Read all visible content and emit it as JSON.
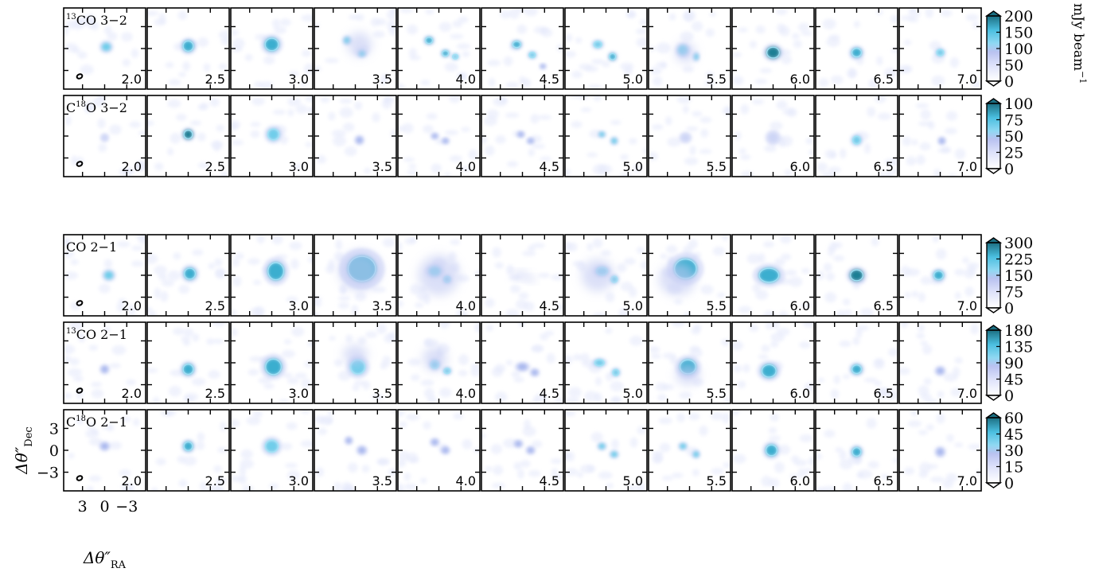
{
  "chart_data": {
    "type": "heatmap",
    "description_kind": "channel-map",
    "velocities": [
      "2.0",
      "2.5",
      "3.0",
      "3.5",
      "4.0",
      "4.5",
      "5.0",
      "5.5",
      "6.0",
      "6.5",
      "7.0"
    ],
    "colorbar_unit": "mJy beam",
    "colorbar_unit_sup": "−1",
    "x_axis": {
      "title": "Δθ″",
      "title_sub": "RA",
      "ticks": [
        "3",
        "0",
        "−3"
      ]
    },
    "y_axis": {
      "title": "Δθ″",
      "title_sub": "Dec",
      "ticks": [
        "3",
        "0",
        "−3"
      ]
    },
    "colors": {
      "low": "#ffffff",
      "mid": "#c9d0f5",
      "cyan": "#4fc4e8",
      "high": "#1c6f82"
    },
    "rows": [
      {
        "label_sup": "13",
        "label": "CO 3−2",
        "colorbar": {
          "min": 0,
          "max": 200,
          "ticks": [
            "200",
            "150",
            "100",
            "50",
            "0"
          ]
        },
        "emission": [
          [
            [
              0.52,
              0.48,
              0.11,
              0.1,
              0.5
            ]
          ],
          [
            [
              0.5,
              0.47,
              0.13,
              0.13,
              0.7
            ]
          ],
          [
            [
              0.5,
              0.45,
              0.17,
              0.16,
              0.8
            ]
          ],
          [
            [
              0.4,
              0.4,
              0.08,
              0.08,
              0.45
            ],
            [
              0.58,
              0.56,
              0.08,
              0.07,
              0.5
            ],
            [
              0.55,
              0.45,
              0.3,
              0.3,
              0.15
            ]
          ],
          [
            [
              0.38,
              0.4,
              0.09,
              0.08,
              0.7
            ],
            [
              0.58,
              0.56,
              0.08,
              0.07,
              0.65
            ],
            [
              0.7,
              0.6,
              0.07,
              0.06,
              0.55
            ]
          ],
          [
            [
              0.43,
              0.45,
              0.1,
              0.08,
              0.65
            ],
            [
              0.62,
              0.58,
              0.08,
              0.07,
              0.55
            ],
            [
              0.75,
              0.72,
              0.06,
              0.05,
              0.35
            ]
          ],
          [
            [
              0.4,
              0.45,
              0.1,
              0.08,
              0.55
            ],
            [
              0.58,
              0.6,
              0.08,
              0.08,
              0.7
            ]
          ],
          [
            [
              0.42,
              0.52,
              0.12,
              0.12,
              0.45
            ],
            [
              0.58,
              0.6,
              0.06,
              0.08,
              0.45
            ],
            [
              0.45,
              0.55,
              0.25,
              0.25,
              0.12
            ]
          ],
          [
            [
              0.5,
              0.55,
              0.16,
              0.14,
              0.9
            ]
          ],
          [
            [
              0.5,
              0.55,
              0.12,
              0.11,
              0.8
            ]
          ],
          [
            [
              0.5,
              0.55,
              0.09,
              0.08,
              0.6
            ]
          ]
        ]
      },
      {
        "label_sup": "18",
        "label": "O 3−2",
        "label_pre": "C",
        "colorbar": {
          "min": 0,
          "max": 100,
          "ticks": [
            "100",
            "75",
            "50",
            "25",
            "0"
          ]
        },
        "emission": [
          [
            [
              0.5,
              0.52,
              0.07,
              0.07,
              0.25
            ]
          ],
          [
            [
              0.5,
              0.48,
              0.11,
              0.11,
              0.85
            ]
          ],
          [
            [
              0.52,
              0.48,
              0.14,
              0.14,
              0.55
            ]
          ],
          [
            [
              0.55,
              0.55,
              0.08,
              0.08,
              0.4
            ]
          ],
          [
            [
              0.45,
              0.5,
              0.07,
              0.06,
              0.4
            ],
            [
              0.58,
              0.56,
              0.07,
              0.06,
              0.4
            ]
          ],
          [
            [
              0.48,
              0.48,
              0.07,
              0.06,
              0.3
            ],
            [
              0.6,
              0.56,
              0.07,
              0.06,
              0.4
            ]
          ],
          [
            [
              0.45,
              0.48,
              0.07,
              0.06,
              0.45
            ],
            [
              0.6,
              0.56,
              0.07,
              0.07,
              0.45
            ]
          ],
          [
            [
              0.45,
              0.52,
              0.1,
              0.09,
              0.22
            ]
          ],
          [
            [
              0.5,
              0.52,
              0.12,
              0.12,
              0.25
            ]
          ],
          [
            [
              0.5,
              0.55,
              0.1,
              0.1,
              0.55
            ]
          ],
          [
            [
              0.52,
              0.56,
              0.07,
              0.07,
              0.35
            ]
          ]
        ]
      },
      {
        "label_sup": "",
        "label": "CO 2−1",
        "colorbar": {
          "min": 0,
          "max": 300,
          "ticks": [
            "300",
            "225",
            "150",
            "75",
            "0"
          ]
        },
        "emission": [
          [
            [
              0.55,
              0.5,
              0.11,
              0.1,
              0.45
            ]
          ],
          [
            [
              0.52,
              0.48,
              0.14,
              0.14,
              0.8
            ]
          ],
          [
            [
              0.55,
              0.45,
              0.2,
              0.22,
              0.75
            ]
          ],
          [
            [
              0.58,
              0.42,
              0.35,
              0.32,
              0.8
            ],
            [
              0.55,
              0.45,
              0.5,
              0.48,
              0.15
            ]
          ],
          [
            [
              0.45,
              0.45,
              0.15,
              0.12,
              0.45
            ],
            [
              0.6,
              0.55,
              0.08,
              0.08,
              0.55
            ],
            [
              0.5,
              0.5,
              0.5,
              0.5,
              0.12
            ]
          ],
          [
            [
              0.48,
              0.5,
              0.2,
              0.1,
              0.18
            ],
            [
              0.6,
              0.55,
              0.12,
              0.08,
              0.15
            ]
          ],
          [
            [
              0.45,
              0.45,
              0.14,
              0.1,
              0.55
            ],
            [
              0.6,
              0.55,
              0.08,
              0.08,
              0.55
            ],
            [
              0.4,
              0.5,
              0.4,
              0.4,
              0.12
            ]
          ],
          [
            [
              0.45,
              0.42,
              0.28,
              0.25,
              0.75
            ],
            [
              0.35,
              0.55,
              0.45,
              0.4,
              0.12
            ]
          ],
          [
            [
              0.45,
              0.5,
              0.25,
              0.18,
              0.8
            ]
          ],
          [
            [
              0.5,
              0.5,
              0.16,
              0.14,
              0.85
            ]
          ],
          [
            [
              0.48,
              0.5,
              0.12,
              0.11,
              0.65
            ]
          ]
        ]
      },
      {
        "label_sup": "13",
        "label": "CO 2−1",
        "colorbar": {
          "min": 0,
          "max": 180,
          "ticks": [
            "180",
            "135",
            "90",
            "45",
            "0"
          ]
        },
        "emission": [
          [
            [
              0.5,
              0.58,
              0.08,
              0.08,
              0.3
            ]
          ],
          [
            [
              0.5,
              0.58,
              0.13,
              0.13,
              0.7
            ]
          ],
          [
            [
              0.52,
              0.55,
              0.2,
              0.2,
              0.7
            ]
          ],
          [
            [
              0.53,
              0.55,
              0.18,
              0.18,
              0.55
            ],
            [
              0.5,
              0.4,
              0.3,
              0.25,
              0.15
            ]
          ],
          [
            [
              0.45,
              0.52,
              0.1,
              0.1,
              0.55
            ],
            [
              0.6,
              0.6,
              0.08,
              0.07,
              0.55
            ],
            [
              0.45,
              0.45,
              0.3,
              0.3,
              0.12
            ]
          ],
          [
            [
              0.5,
              0.55,
              0.12,
              0.08,
              0.35
            ],
            [
              0.65,
              0.62,
              0.08,
              0.07,
              0.3
            ]
          ],
          [
            [
              0.42,
              0.5,
              0.12,
              0.08,
              0.55
            ],
            [
              0.62,
              0.62,
              0.08,
              0.08,
              0.55
            ]
          ],
          [
            [
              0.48,
              0.55,
              0.2,
              0.18,
              0.7
            ],
            [
              0.48,
              0.65,
              0.3,
              0.25,
              0.15
            ]
          ],
          [
            [
              0.45,
              0.6,
              0.18,
              0.16,
              0.75
            ]
          ],
          [
            [
              0.5,
              0.58,
              0.12,
              0.11,
              0.65
            ]
          ],
          [
            [
              0.5,
              0.6,
              0.09,
              0.08,
              0.4
            ]
          ]
        ]
      },
      {
        "label_sup": "18",
        "label": "O 2−1",
        "label_pre": "C",
        "colorbar": {
          "min": 0,
          "max": 60,
          "ticks": [
            "60",
            "45",
            "30",
            "15",
            "0"
          ]
        },
        "emission": [
          [
            [
              0.5,
              0.45,
              0.09,
              0.08,
              0.35
            ]
          ],
          [
            [
              0.5,
              0.45,
              0.11,
              0.11,
              0.65
            ]
          ],
          [
            [
              0.5,
              0.45,
              0.16,
              0.15,
              0.6
            ]
          ],
          [
            [
              0.42,
              0.38,
              0.07,
              0.07,
              0.3
            ],
            [
              0.58,
              0.5,
              0.09,
              0.08,
              0.4
            ]
          ],
          [
            [
              0.45,
              0.4,
              0.08,
              0.07,
              0.35
            ],
            [
              0.58,
              0.5,
              0.08,
              0.07,
              0.4
            ]
          ],
          [
            [
              0.45,
              0.42,
              0.08,
              0.07,
              0.4
            ],
            [
              0.6,
              0.5,
              0.08,
              0.07,
              0.4
            ]
          ],
          [
            [
              0.45,
              0.45,
              0.08,
              0.07,
              0.5
            ],
            [
              0.6,
              0.55,
              0.08,
              0.07,
              0.5
            ]
          ],
          [
            [
              0.42,
              0.45,
              0.08,
              0.07,
              0.45
            ],
            [
              0.58,
              0.55,
              0.07,
              0.07,
              0.45
            ]
          ],
          [
            [
              0.48,
              0.5,
              0.14,
              0.14,
              0.8
            ]
          ],
          [
            [
              0.5,
              0.52,
              0.11,
              0.11,
              0.75
            ]
          ],
          [
            [
              0.5,
              0.52,
              0.09,
              0.09,
              0.4
            ]
          ]
        ]
      }
    ]
  }
}
